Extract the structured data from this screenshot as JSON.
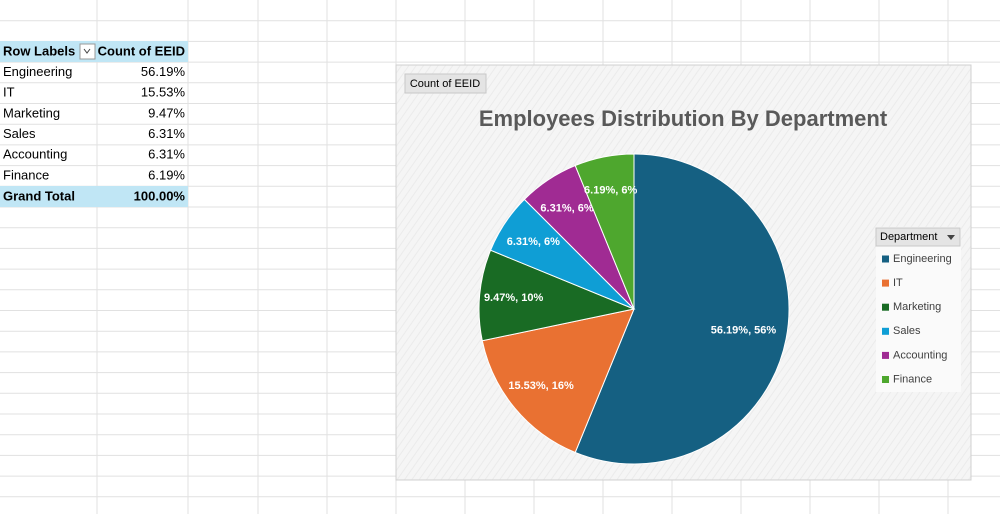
{
  "table": {
    "header": [
      "Row Labels",
      "Count of EEID"
    ],
    "rows": [
      [
        "Engineering",
        "56.19%"
      ],
      [
        "IT",
        "15.53%"
      ],
      [
        "Marketing",
        "9.47%"
      ],
      [
        "Sales",
        "6.31%"
      ],
      [
        "Accounting",
        "6.31%"
      ],
      [
        "Finance",
        "6.19%"
      ]
    ],
    "total": [
      "Grand Total",
      "100.00%"
    ]
  },
  "chart_data": {
    "type": "pie",
    "title": "Employees Distribution By Department",
    "field_button": "Count of EEID",
    "legend_title": "Department",
    "legend": "right",
    "categories": [
      "Engineering",
      "IT",
      "Marketing",
      "Sales",
      "Accounting",
      "Finance"
    ],
    "values": [
      56.19,
      15.53,
      9.47,
      6.31,
      6.31,
      6.19
    ],
    "value_labels": [
      "56.19%, 56%",
      "15.53%, 16%",
      "9.47%, 10%",
      "6.31%, 6%",
      "6.31%, 6%",
      "6.19%, 6%"
    ],
    "colors": [
      "#156082",
      "#e97132",
      "#196b24",
      "#0f9ed5",
      "#a02b93",
      "#4ea72e"
    ]
  }
}
